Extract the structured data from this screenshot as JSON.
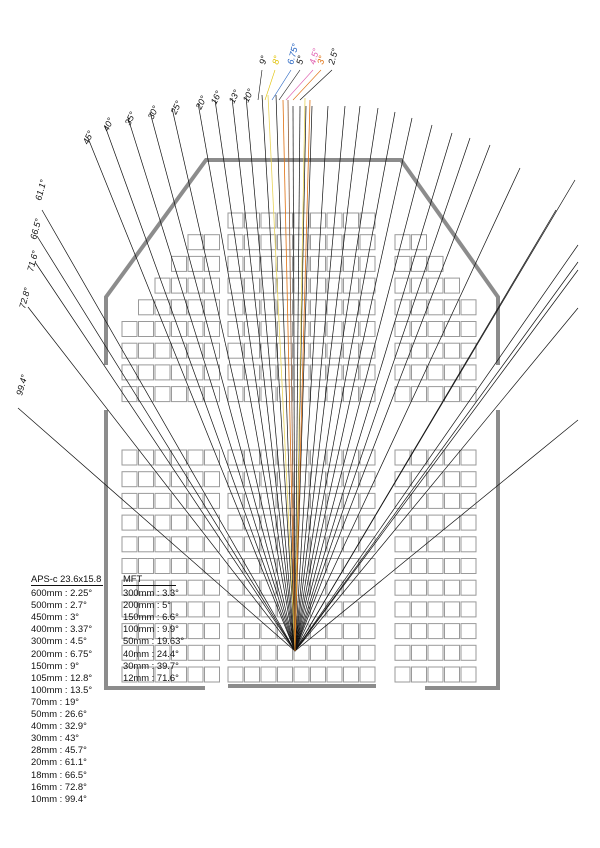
{
  "angle_labels": {
    "left": [
      "99.4°",
      "72.8°",
      "71.6°",
      "66.5°",
      "61.1°",
      "45°",
      "40°",
      "35°",
      "30°",
      "25°",
      "20°",
      "16°",
      "13°",
      "10°"
    ],
    "top": [
      {
        "text": "9°",
        "color": "#111111"
      },
      {
        "text": "8°",
        "color": "#e0c000"
      },
      {
        "text": "6.75°",
        "color": "#1f5fbf"
      },
      {
        "text": "5°",
        "color": "#111111"
      },
      {
        "text": "4.5°",
        "color": "#e060b0"
      },
      {
        "text": "3°",
        "color": "#e07010"
      },
      {
        "text": "2.5°",
        "color": "#111111"
      }
    ]
  },
  "colors": {
    "frame": "#8c8c8c",
    "window": "#9a9a9a",
    "ray": "#111111",
    "ray_yellow": "#e8d45a",
    "ray_orange": "#e07010",
    "ray_brown": "#8a5a3a"
  },
  "legend_apsc": {
    "title": "APS-c 23.6x15.8",
    "rows": [
      "600mm : 2.25°",
      "500mm : 2.7°",
      "450mm : 3°",
      "400mm : 3.37°",
      "300mm : 4.5°",
      "200mm : 6.75°",
      "150mm : 9°",
      "105mm : 12.8°",
      "100mm : 13.5°",
      "70mm : 19°",
      "50mm : 26.6°",
      "40mm : 32.9°",
      "30mm : 43°",
      "28mm : 45.7°",
      "20mm : 61.1°",
      "18mm : 66.5°",
      "16mm : 72.8°",
      "10mm : 99.4°"
    ]
  },
  "legend_mft": {
    "title": "MFT",
    "rows": [
      "300mm : 3.3°",
      "200mm : 5°",
      "150mm : 6.6°",
      "100mm : 9.9°",
      "50mm : 19.63°",
      "40mm : 24.4°",
      "30mm : 39.7°",
      "12mm : 71.6°"
    ]
  }
}
